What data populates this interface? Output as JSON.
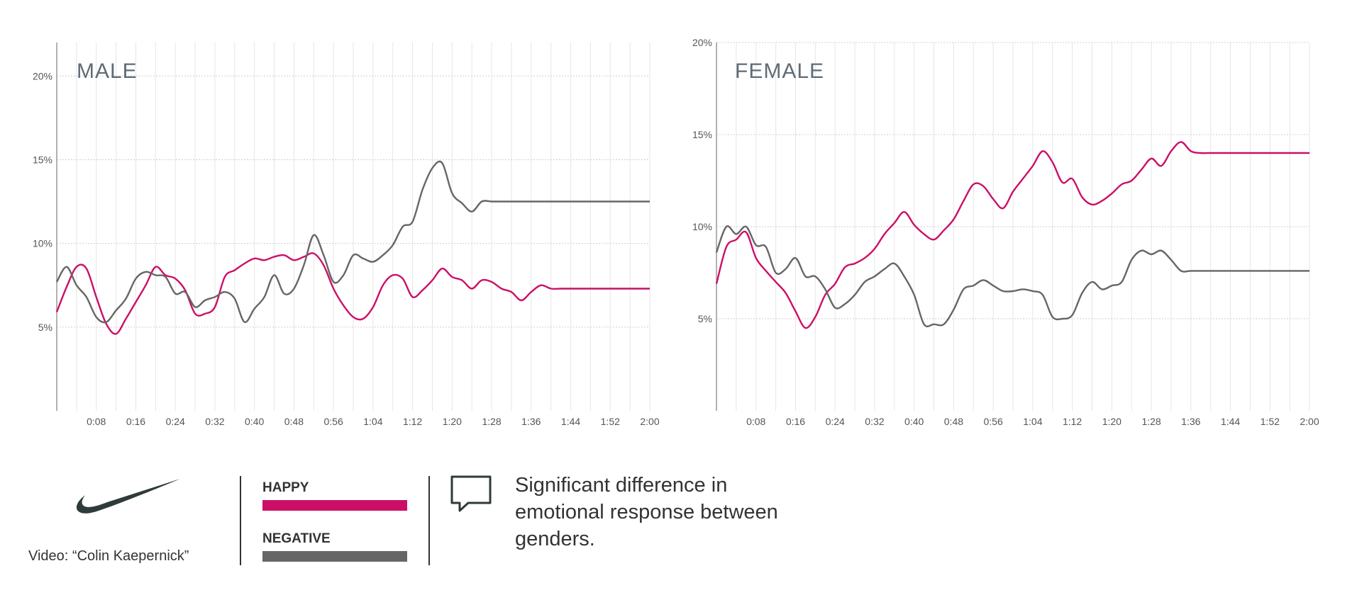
{
  "chart_data": [
    {
      "type": "line",
      "title": "MALE",
      "xlabel": "",
      "ylabel": "",
      "x_ticks": [
        "0:08",
        "0:16",
        "0:24",
        "0:32",
        "0:40",
        "0:48",
        "0:56",
        "1:04",
        "1:12",
        "1:20",
        "1:28",
        "1:36",
        "1:44",
        "1:52",
        "2:00"
      ],
      "y_ticks": [
        "5%",
        "10%",
        "15%",
        "20%"
      ],
      "xlim": [
        0,
        120
      ],
      "ylim": [
        0,
        22
      ],
      "grid": true,
      "series": [
        {
          "name": "HAPPY",
          "color": "#cc0f66",
          "x": [
            0,
            2,
            4,
            6,
            8,
            10,
            12,
            14,
            16,
            18,
            20,
            22,
            24,
            26,
            28,
            30,
            32,
            34,
            36,
            38,
            40,
            42,
            44,
            46,
            48,
            50,
            52,
            54,
            56,
            58,
            60,
            62,
            64,
            66,
            68,
            70,
            72,
            74,
            76,
            78,
            80,
            82,
            84,
            86,
            88,
            90,
            92,
            94,
            96,
            98,
            100,
            102,
            104,
            106,
            108,
            110,
            112,
            114,
            116,
            118,
            120
          ],
          "y": [
            5.9,
            7.4,
            8.6,
            8.5,
            6.8,
            5.2,
            4.6,
            5.5,
            6.5,
            7.5,
            8.6,
            8.1,
            7.9,
            7.2,
            5.8,
            5.8,
            6.2,
            8.0,
            8.4,
            8.8,
            9.1,
            9.0,
            9.2,
            9.3,
            9.0,
            9.2,
            9.4,
            8.7,
            7.3,
            6.3,
            5.6,
            5.5,
            6.2,
            7.5,
            8.1,
            7.9,
            6.8,
            7.2,
            7.8,
            8.5,
            8.0,
            7.8,
            7.3,
            7.8,
            7.7,
            7.3,
            7.1,
            6.6,
            7.1,
            7.5,
            7.3,
            7.3,
            7.3,
            7.3,
            7.3,
            7.3,
            7.3,
            7.3,
            7.3,
            7.3,
            7.3
          ]
        },
        {
          "name": "NEGATIVE",
          "color": "#666666",
          "x": [
            0,
            2,
            4,
            6,
            8,
            10,
            12,
            14,
            16,
            18,
            20,
            22,
            24,
            26,
            28,
            30,
            32,
            34,
            36,
            38,
            40,
            42,
            44,
            46,
            48,
            50,
            52,
            54,
            56,
            58,
            60,
            62,
            64,
            66,
            68,
            70,
            72,
            74,
            76,
            78,
            80,
            82,
            84,
            86,
            88,
            90,
            92,
            94,
            96,
            98,
            100,
            102,
            104,
            106,
            108,
            110,
            112,
            114,
            116,
            118,
            120
          ],
          "y": [
            7.7,
            8.6,
            7.5,
            6.8,
            5.6,
            5.3,
            6.0,
            6.7,
            7.9,
            8.3,
            8.1,
            8.0,
            7.0,
            7.1,
            6.2,
            6.6,
            6.8,
            7.1,
            6.7,
            5.3,
            6.1,
            6.8,
            8.1,
            7.0,
            7.3,
            8.7,
            10.5,
            9.3,
            7.7,
            8.1,
            9.3,
            9.1,
            8.9,
            9.3,
            9.9,
            11.0,
            11.3,
            13.2,
            14.5,
            14.8,
            13.0,
            12.4,
            11.9,
            12.5,
            12.5,
            12.5,
            12.5,
            12.5,
            12.5,
            12.5,
            12.5,
            12.5,
            12.5,
            12.5,
            12.5,
            12.5,
            12.5,
            12.5,
            12.5,
            12.5,
            12.5
          ]
        }
      ]
    },
    {
      "type": "line",
      "title": "FEMALE",
      "xlabel": "",
      "ylabel": "",
      "x_ticks": [
        "0:08",
        "0:16",
        "0:24",
        "0:32",
        "0:40",
        "0:48",
        "0:56",
        "1:04",
        "1:12",
        "1:20",
        "1:28",
        "1:36",
        "1:44",
        "1:52",
        "2:00"
      ],
      "y_ticks": [
        "5%",
        "10%",
        "15%",
        "20%"
      ],
      "xlim": [
        0,
        120
      ],
      "ylim": [
        0,
        20
      ],
      "grid": true,
      "series": [
        {
          "name": "HAPPY",
          "color": "#cc0f66",
          "x": [
            0,
            2,
            4,
            6,
            8,
            10,
            12,
            14,
            16,
            18,
            20,
            22,
            24,
            26,
            28,
            30,
            32,
            34,
            36,
            38,
            40,
            42,
            44,
            46,
            48,
            50,
            52,
            54,
            56,
            58,
            60,
            62,
            64,
            66,
            68,
            70,
            72,
            74,
            76,
            78,
            80,
            82,
            84,
            86,
            88,
            90,
            92,
            94,
            96,
            98,
            100,
            102,
            104,
            106,
            108,
            110,
            112,
            114,
            116,
            118,
            120
          ],
          "y": [
            6.9,
            8.9,
            9.3,
            9.7,
            8.3,
            7.6,
            7.0,
            6.4,
            5.4,
            4.5,
            5.1,
            6.3,
            6.9,
            7.8,
            8.0,
            8.3,
            8.8,
            9.6,
            10.2,
            10.8,
            10.1,
            9.6,
            9.3,
            9.8,
            10.4,
            11.4,
            12.3,
            12.2,
            11.5,
            11.0,
            11.9,
            12.6,
            13.3,
            14.1,
            13.5,
            12.4,
            12.6,
            11.6,
            11.2,
            11.4,
            11.8,
            12.3,
            12.5,
            13.1,
            13.7,
            13.3,
            14.1,
            14.6,
            14.1,
            14.0,
            14.0,
            14.0,
            14.0,
            14.0,
            14.0,
            14.0,
            14.0,
            14.0,
            14.0,
            14.0,
            14.0
          ]
        },
        {
          "name": "NEGATIVE",
          "color": "#666666",
          "x": [
            0,
            2,
            4,
            6,
            8,
            10,
            12,
            14,
            16,
            18,
            20,
            22,
            24,
            26,
            28,
            30,
            32,
            34,
            36,
            38,
            40,
            42,
            44,
            46,
            48,
            50,
            52,
            54,
            56,
            58,
            60,
            62,
            64,
            66,
            68,
            70,
            72,
            74,
            76,
            78,
            80,
            82,
            84,
            86,
            88,
            90,
            92,
            94,
            96,
            98,
            100,
            102,
            104,
            106,
            108,
            110,
            112,
            114,
            116,
            118,
            120
          ],
          "y": [
            8.6,
            10.0,
            9.6,
            10.0,
            9.0,
            8.9,
            7.5,
            7.7,
            8.3,
            7.3,
            7.3,
            6.6,
            5.6,
            5.8,
            6.3,
            7.0,
            7.3,
            7.7,
            8.0,
            7.3,
            6.3,
            4.7,
            4.7,
            4.7,
            5.5,
            6.6,
            6.8,
            7.1,
            6.8,
            6.5,
            6.5,
            6.6,
            6.5,
            6.3,
            5.1,
            5.0,
            5.2,
            6.4,
            7.0,
            6.6,
            6.8,
            7.0,
            8.2,
            8.7,
            8.5,
            8.7,
            8.2,
            7.6,
            7.6,
            7.6,
            7.6,
            7.6,
            7.6,
            7.6,
            7.6,
            7.6,
            7.6,
            7.6,
            7.6,
            7.6,
            7.6
          ]
        }
      ]
    }
  ],
  "legend": {
    "happy_label": "HAPPY",
    "negative_label": "NEGATIVE",
    "happy_color": "#cc0f66",
    "negative_color": "#666666"
  },
  "footer": {
    "video_label": "Video: “Colin Kaepernick”",
    "note": "Significant difference in emotional response between genders."
  },
  "icons": {
    "logo": "nike-swoosh-icon",
    "comment": "speech-bubble-icon"
  }
}
